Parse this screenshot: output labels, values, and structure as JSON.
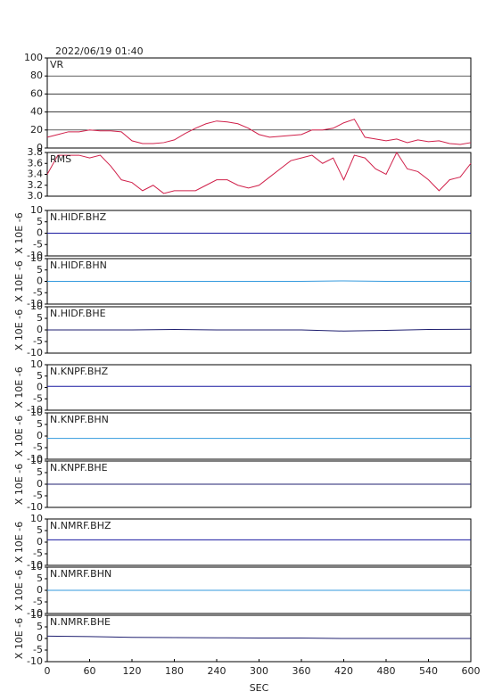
{
  "chart_data": [
    {
      "type": "line",
      "title": "2022/06/19 01:40",
      "grid": true,
      "xlim": [
        0,
        600
      ],
      "ylim": [
        0,
        100
      ],
      "yticks": [
        0,
        20,
        40,
        60,
        80,
        100
      ],
      "x": [
        0,
        15,
        30,
        45,
        60,
        75,
        90,
        105,
        120,
        135,
        150,
        165,
        180,
        195,
        210,
        225,
        240,
        255,
        270,
        285,
        300,
        315,
        330,
        345,
        360,
        375,
        390,
        405,
        420,
        435,
        450,
        465,
        480,
        495,
        510,
        525,
        540,
        555,
        570,
        585,
        600
      ],
      "series": [
        {
          "name": "VR",
          "color": "#d0204a",
          "values": [
            12,
            15,
            18,
            18,
            20,
            19,
            19,
            18,
            8,
            5,
            5,
            6,
            9,
            16,
            22,
            27,
            30,
            29,
            27,
            22,
            15,
            12,
            13,
            14,
            15,
            20,
            20,
            22,
            28,
            32,
            12,
            10,
            8,
            10,
            6,
            9,
            7,
            8,
            5,
            4,
            6
          ]
        }
      ]
    },
    {
      "type": "line",
      "grid": false,
      "xlim": [
        0,
        600
      ],
      "ylim": [
        3.0,
        3.8
      ],
      "yticks": [
        {
          "value": 3.0,
          "label": "3.0"
        },
        3.2,
        3.4,
        3.6,
        3.8
      ],
      "x": [
        0,
        15,
        30,
        45,
        60,
        75,
        90,
        105,
        120,
        135,
        150,
        165,
        180,
        195,
        210,
        225,
        240,
        255,
        270,
        285,
        300,
        315,
        330,
        345,
        360,
        375,
        390,
        405,
        420,
        435,
        450,
        465,
        480,
        495,
        510,
        525,
        540,
        555,
        570,
        585,
        600
      ],
      "series": [
        {
          "name": "RMS",
          "color": "#d0204a",
          "values": [
            3.4,
            3.75,
            3.75,
            3.75,
            3.7,
            3.75,
            3.55,
            3.3,
            3.25,
            3.1,
            3.2,
            3.05,
            3.1,
            3.1,
            3.1,
            3.2,
            3.3,
            3.3,
            3.2,
            3.15,
            3.2,
            3.35,
            3.5,
            3.65,
            3.7,
            3.75,
            3.6,
            3.7,
            3.3,
            3.75,
            3.7,
            3.5,
            3.4,
            3.8,
            3.5,
            3.45,
            3.3,
            3.1,
            3.3,
            3.35,
            3.6
          ]
        }
      ]
    },
    {
      "type": "line",
      "ylabel": "X 10E -6",
      "xlim": [
        0,
        600
      ],
      "ylim": [
        -10,
        10
      ],
      "yticks": [
        -10,
        -5,
        0,
        5,
        10
      ],
      "x": [
        0,
        60,
        120,
        180,
        240,
        300,
        360,
        420,
        480,
        540,
        600
      ],
      "series": [
        {
          "name": "N.HIDF.BHZ",
          "color": "#1a1aa0",
          "values": [
            0,
            0,
            0,
            0,
            0,
            0,
            0,
            0,
            0,
            0,
            0
          ]
        }
      ]
    },
    {
      "type": "line",
      "ylabel": "X 10E -6",
      "xlim": [
        0,
        600
      ],
      "ylim": [
        -10,
        10
      ],
      "yticks": [
        -10,
        -5,
        0,
        5,
        10
      ],
      "x": [
        0,
        60,
        120,
        180,
        240,
        300,
        360,
        420,
        480,
        540,
        600
      ],
      "series": [
        {
          "name": "N.HIDF.BHN",
          "color": "#3399dd",
          "values": [
            0,
            0,
            0,
            0,
            0,
            0,
            0,
            0.2,
            0,
            0,
            0
          ]
        }
      ]
    },
    {
      "type": "line",
      "ylabel": "X 10E -6",
      "xlim": [
        0,
        600
      ],
      "ylim": [
        -10,
        10
      ],
      "yticks": [
        -10,
        -5,
        0,
        5,
        10
      ],
      "x": [
        0,
        60,
        120,
        180,
        240,
        300,
        360,
        420,
        480,
        540,
        600
      ],
      "series": [
        {
          "name": "N.HIDF.BHE",
          "color": "#202070",
          "values": [
            0,
            0,
            0,
            0.2,
            0,
            0,
            0,
            -0.5,
            -0.2,
            0.2,
            0.3
          ]
        }
      ]
    },
    {
      "type": "line",
      "ylabel": "X 10E -6",
      "xlim": [
        0,
        600
      ],
      "ylim": [
        -10,
        10
      ],
      "yticks": [
        -10,
        -5,
        0,
        5,
        10
      ],
      "x": [
        0,
        60,
        120,
        180,
        240,
        300,
        360,
        420,
        480,
        540,
        600
      ],
      "series": [
        {
          "name": "N.KNPF.BHZ",
          "color": "#1a1aa0",
          "values": [
            0.5,
            0.5,
            0.5,
            0.5,
            0.5,
            0.5,
            0.5,
            0.5,
            0.5,
            0.5,
            0.5
          ]
        }
      ]
    },
    {
      "type": "line",
      "ylabel": "X 10E -6",
      "xlim": [
        0,
        600
      ],
      "ylim": [
        -10,
        10
      ],
      "yticks": [
        -10,
        -5,
        0,
        5,
        10
      ],
      "x": [
        0,
        60,
        120,
        180,
        240,
        300,
        360,
        420,
        480,
        540,
        600
      ],
      "series": [
        {
          "name": "N.KNPF.BHN",
          "color": "#3399dd",
          "values": [
            -1,
            -1,
            -1,
            -1,
            -1,
            -1,
            -1,
            -1,
            -1,
            -1,
            -1
          ]
        }
      ]
    },
    {
      "type": "line",
      "ylabel": "X 10E -6",
      "xlim": [
        0,
        600
      ],
      "ylim": [
        -10,
        10
      ],
      "yticks": [
        -10,
        -5,
        0,
        5,
        10
      ],
      "x": [
        0,
        60,
        120,
        180,
        240,
        300,
        360,
        420,
        480,
        540,
        600
      ],
      "series": [
        {
          "name": "N.KNPF.BHE",
          "color": "#202070",
          "values": [
            0,
            0,
            0,
            0,
            0,
            0,
            0,
            0,
            0,
            0,
            0
          ]
        }
      ]
    },
    {
      "type": "line",
      "ylabel": "X 10E -6",
      "xlim": [
        0,
        600
      ],
      "ylim": [
        -10,
        10
      ],
      "yticks": [
        -10,
        -5,
        0,
        5,
        10
      ],
      "x": [
        0,
        60,
        120,
        180,
        240,
        300,
        360,
        420,
        480,
        540,
        600
      ],
      "series": [
        {
          "name": "N.NMRF.BHZ",
          "color": "#1a1aa0",
          "values": [
            1,
            1,
            1,
            1,
            1,
            1,
            1,
            1,
            1,
            1,
            1
          ]
        }
      ]
    },
    {
      "type": "line",
      "ylabel": "X 10E -6",
      "xlim": [
        0,
        600
      ],
      "ylim": [
        -10,
        10
      ],
      "yticks": [
        -10,
        -5,
        0,
        5,
        10
      ],
      "x": [
        0,
        60,
        120,
        180,
        240,
        300,
        360,
        420,
        480,
        540,
        600
      ],
      "series": [
        {
          "name": "N.NMRF.BHN",
          "color": "#3399dd",
          "values": [
            0,
            0,
            0,
            0,
            0,
            0,
            0,
            0,
            0,
            0,
            0
          ]
        }
      ]
    },
    {
      "type": "line",
      "ylabel": "X 10E -6",
      "xlabel": "SEC",
      "xlim": [
        0,
        600
      ],
      "ylim": [
        -10,
        10
      ],
      "yticks": [
        -10,
        -5,
        0,
        5,
        10
      ],
      "xticks": [
        0,
        60,
        120,
        180,
        240,
        300,
        360,
        420,
        480,
        540,
        600
      ],
      "x": [
        0,
        60,
        120,
        180,
        240,
        300,
        360,
        420,
        480,
        540,
        600
      ],
      "series": [
        {
          "name": "N.NMRF.BHE",
          "color": "#202070",
          "values": [
            1,
            0.8,
            0.5,
            0.4,
            0.3,
            0.2,
            0.2,
            0,
            0,
            0,
            0
          ]
        }
      ]
    }
  ]
}
